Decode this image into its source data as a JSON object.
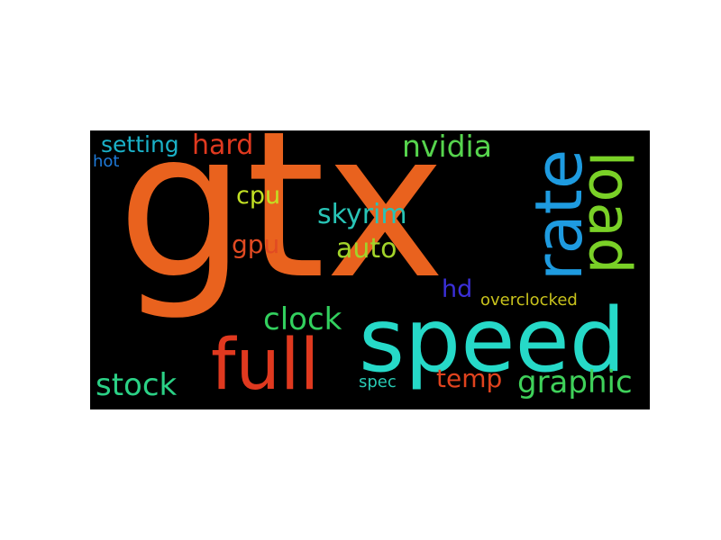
{
  "background_color": "#000000",
  "words": [
    {
      "text": "gtx",
      "color": "#e9621e"
    },
    {
      "text": "speed",
      "color": "#26d9c8"
    },
    {
      "text": "rate",
      "color": "#1e9be0"
    },
    {
      "text": "load",
      "color": "#7ad127"
    },
    {
      "text": "full",
      "color": "#e0391f"
    },
    {
      "text": "setting",
      "color": "#1ab1c8"
    },
    {
      "text": "hard",
      "color": "#e0391f"
    },
    {
      "text": "nvidia",
      "color": "#56d44d"
    },
    {
      "text": "hot",
      "color": "#1e7ad9"
    },
    {
      "text": "cpu",
      "color": "#c2e024"
    },
    {
      "text": "skyrim",
      "color": "#28c4b6"
    },
    {
      "text": "gpu",
      "color": "#e14a22"
    },
    {
      "text": "auto",
      "color": "#a2d32a"
    },
    {
      "text": "hd",
      "color": "#3b2fd9"
    },
    {
      "text": "overclocked",
      "color": "#c8c21c"
    },
    {
      "text": "clock",
      "color": "#32d05e"
    },
    {
      "text": "stock",
      "color": "#2bd186"
    },
    {
      "text": "temp",
      "color": "#e0431e"
    },
    {
      "text": "spec",
      "color": "#28cab3"
    },
    {
      "text": "graphic",
      "color": "#3fd15a"
    }
  ]
}
